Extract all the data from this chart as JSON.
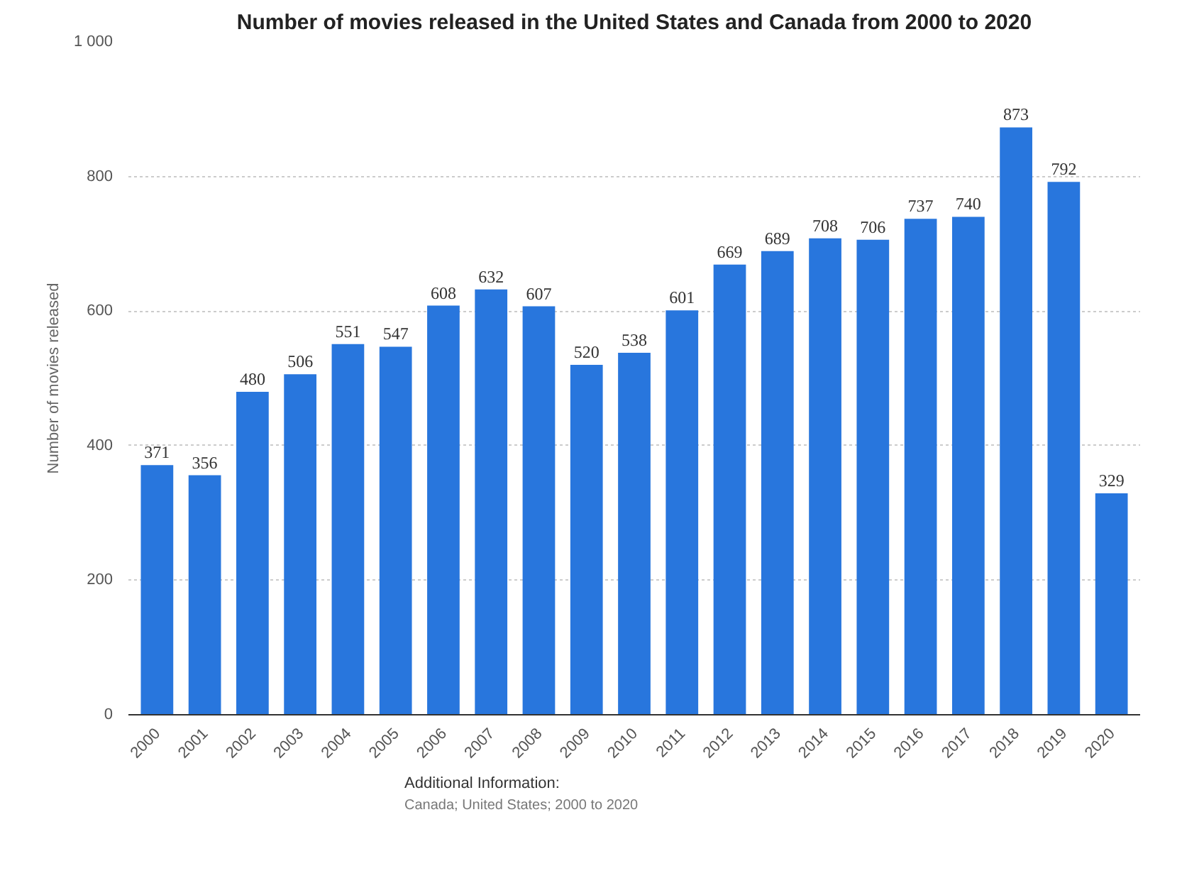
{
  "chart_data": {
    "type": "bar",
    "title": "Number of movies released in the United States and Canada from 2000 to 2020",
    "ylabel": "Number of movies released",
    "categories": [
      "2000",
      "2001",
      "2002",
      "2003",
      "2004",
      "2005",
      "2006",
      "2007",
      "2008",
      "2009",
      "2010",
      "2011",
      "2012",
      "2013",
      "2014",
      "2015",
      "2016",
      "2017",
      "2018",
      "2019",
      "2020"
    ],
    "values": [
      371,
      356,
      480,
      506,
      551,
      547,
      608,
      632,
      607,
      520,
      538,
      601,
      669,
      689,
      708,
      706,
      737,
      740,
      873,
      792,
      329
    ],
    "color": "#2876dd",
    "ylim": [
      0,
      1000
    ],
    "yticks": [
      0,
      200,
      400,
      600,
      800,
      {
        "value": 1000,
        "label": "1 000"
      }
    ],
    "grid": "y",
    "data_labels": true,
    "annotations": [
      "Additional Information:",
      "Canada; United States; 2000 to 2020"
    ]
  }
}
